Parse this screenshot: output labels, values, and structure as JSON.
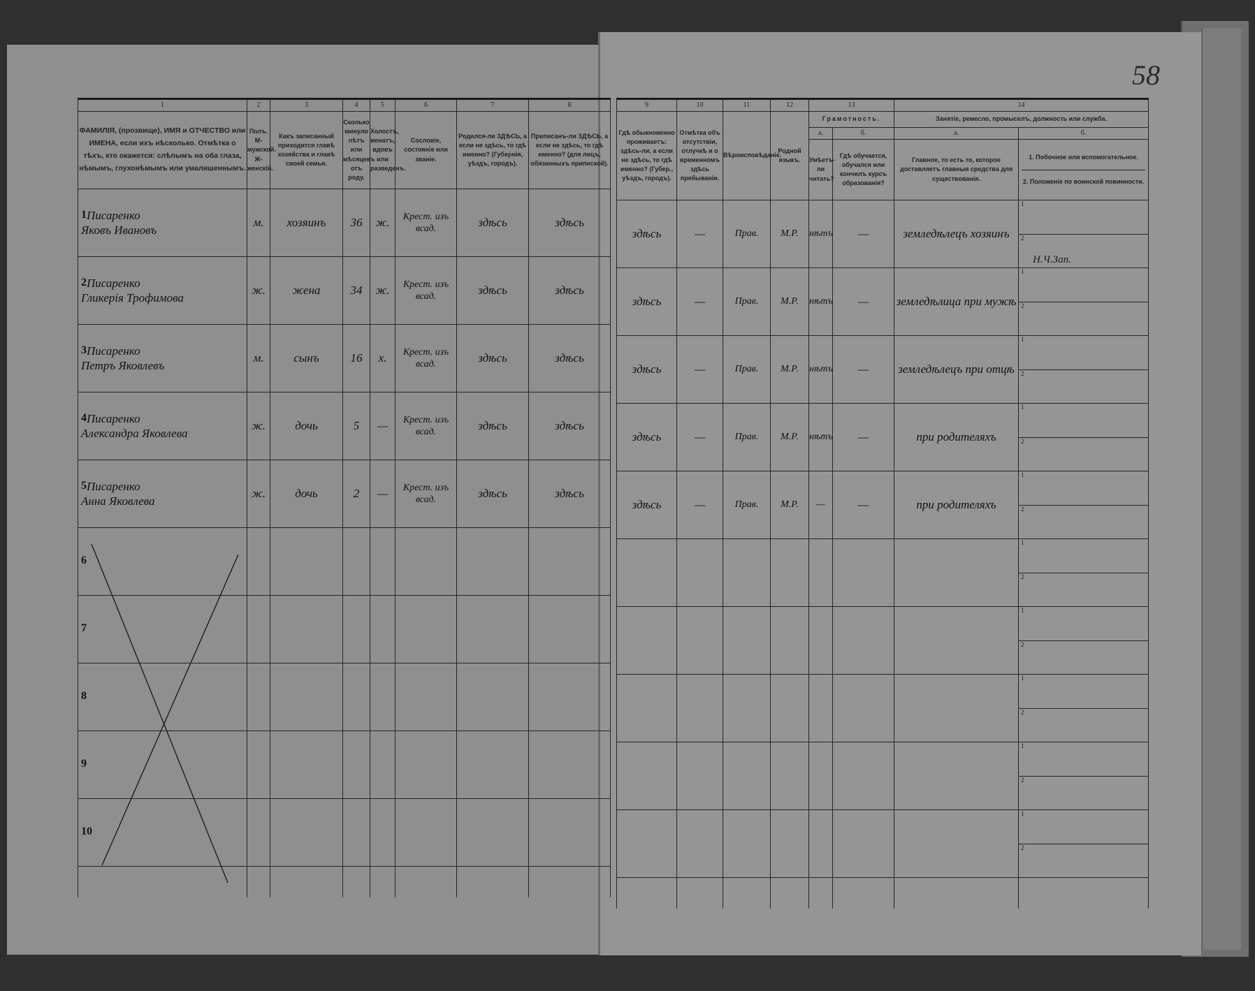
{
  "page_number": "58",
  "left_headers": [
    {
      "num": "1",
      "text": "ФАМИЛІЯ, (прозвище), ИМЯ и ОТЧЕСТВО или ИМЕНА, если ихъ нѣсколько. Отмѣтка о тѣхъ, кто окажется: слѣпымъ на оба глаза, нѣмымъ, глухонѣмымъ или умалишеннымъ."
    },
    {
      "num": "2",
      "text": "Полъ. М-мужской. Ж-женскій."
    },
    {
      "num": "3",
      "text": "Какъ записанный приходится главѣ хозяйства и главѣ своей семьи."
    },
    {
      "num": "4",
      "text": "Сколько минуло лѣтъ или мѣсяцевъ отъ роду."
    },
    {
      "num": "5",
      "text": "Холостъ, женатъ, вдовъ или разведенъ."
    },
    {
      "num": "6",
      "text": "Сословіе, состояніе или званіе."
    },
    {
      "num": "7",
      "text": "Родился-ли ЗДѢСЬ, а если не здѣсь, то гдѣ именно? (Губернія, уѣздъ, городъ)."
    },
    {
      "num": "8",
      "text": "Приписанъ-ли ЗДѢСЬ, а если не здѣсь, то гдѣ именно? (для лицъ, обязанныхъ припиской)."
    }
  ],
  "right_headers": {
    "col9": {
      "num": "9",
      "text": "Гдѣ обыкновенно проживаетъ: здѣсь-ли, а если не здѣсь, то гдѣ именно? (Губер., уѣздъ, городъ)."
    },
    "col10": {
      "num": "10",
      "text": "Отмѣтка объ отсутствіи, отлучкѣ и о временномъ здѣсь пребываніи."
    },
    "col11": {
      "num": "11",
      "text": "Вѣроисповѣданіе."
    },
    "col12": {
      "num": "12",
      "text": "Родной языкъ."
    },
    "col13": {
      "num": "13",
      "group": "Грамотность.",
      "a_label": "а.",
      "b_label": "б.",
      "a_text": "Умѣетъ-ли читать?",
      "b_text": "Гдѣ обучается, обучался или кончилъ курсъ образованія?"
    },
    "col14": {
      "num": "14",
      "group": "Занятіе, ремесло, промыселъ, должность или служба.",
      "a_label": "а.",
      "b_label": "б.",
      "a_text": "Главное, то есть то, которое доставляетъ главныя средства для существованія.",
      "b_text_1": "1. Побочное или вспомогательное.",
      "b_text_2": "2. Положеніе по воинской повинности."
    }
  },
  "sub_labels": [
    "1",
    "2"
  ],
  "rows": [
    {
      "n": "1",
      "surname": "Писаренко",
      "given": "Яковъ Ивановъ",
      "sex": "м.",
      "relation": "хозяинъ",
      "age": "36",
      "marital": "ж.",
      "estate": "Крест. изъ всад.",
      "born": "здѣсь",
      "registered": "здѣсь",
      "resides": "здѣсь",
      "absence": "—",
      "religion": "Прав.",
      "language": "М.Р.",
      "literate": "нѣтъ",
      "school": "—",
      "occupation_main": "земледѣлецъ хозяинъ",
      "occupation_side": "",
      "military": "Н.Ч.Зап."
    },
    {
      "n": "2",
      "surname": "Писаренко",
      "given": "Гликерія Трофимова",
      "sex": "ж.",
      "relation": "жена",
      "age": "34",
      "marital": "ж.",
      "estate": "Крест. изъ всад.",
      "born": "здѣсь",
      "registered": "здѣсь",
      "resides": "здѣсь",
      "absence": "—",
      "religion": "Прав.",
      "language": "М.Р.",
      "literate": "нѣтъ",
      "school": "—",
      "occupation_main": "земледѣлица при мужѣ",
      "occupation_side": "",
      "military": ""
    },
    {
      "n": "3",
      "surname": "Писаренко",
      "given": "Петръ Яковлевъ",
      "sex": "м.",
      "relation": "сынъ",
      "age": "16",
      "marital": "х.",
      "estate": "Крест. изъ всад.",
      "born": "здѣсь",
      "registered": "здѣсь",
      "resides": "здѣсь",
      "absence": "—",
      "religion": "Прав.",
      "language": "М.Р.",
      "literate": "нѣтъ",
      "school": "—",
      "occupation_main": "земледѣлецъ при отцѣ",
      "occupation_side": "",
      "military": ""
    },
    {
      "n": "4",
      "surname": "Писаренко",
      "given": "Александра Яковлева",
      "sex": "ж.",
      "relation": "дочь",
      "age": "5",
      "marital": "—",
      "estate": "Крест. изъ всад.",
      "born": "здѣсь",
      "registered": "здѣсь",
      "resides": "здѣсь",
      "absence": "—",
      "religion": "Прав.",
      "language": "М.Р.",
      "literate": "нѣтъ",
      "school": "—",
      "occupation_main": "при родителяхъ",
      "occupation_side": "",
      "military": ""
    },
    {
      "n": "5",
      "surname": "Писаренко",
      "given": "Анна Яковлева",
      "sex": "ж.",
      "relation": "дочь",
      "age": "2",
      "marital": "—",
      "estate": "Крест. изъ всад.",
      "born": "здѣсь",
      "registered": "здѣсь",
      "resides": "здѣсь",
      "absence": "—",
      "religion": "Прав.",
      "language": "М.Р.",
      "literate": "—",
      "school": "—",
      "occupation_main": "при родителяхъ",
      "occupation_side": "",
      "military": ""
    },
    {
      "n": "6"
    },
    {
      "n": "7"
    },
    {
      "n": "8"
    },
    {
      "n": "9"
    },
    {
      "n": "10"
    }
  ]
}
